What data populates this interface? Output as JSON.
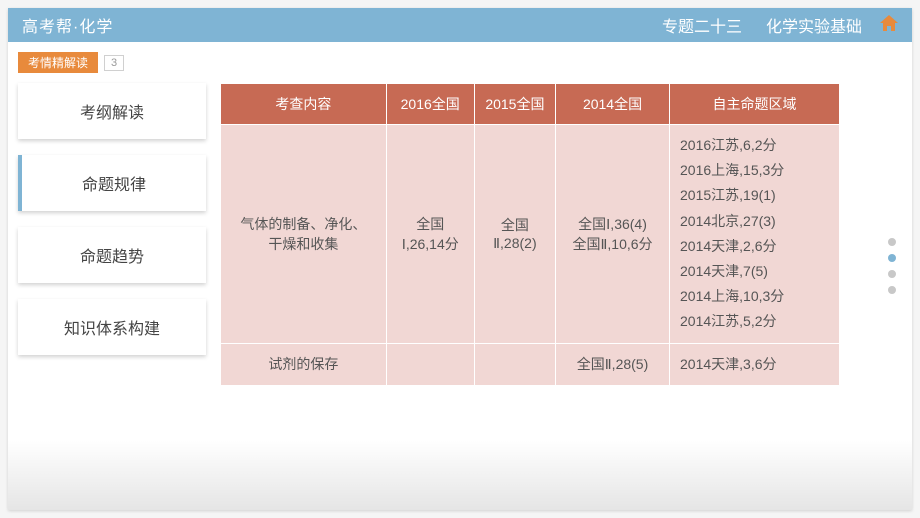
{
  "header": {
    "brand": "高考帮·化学",
    "topic_label": "专题二十三",
    "topic_title": "化学实验基础"
  },
  "subbar": {
    "tag": "考情精解读",
    "num": "3"
  },
  "sidebar": {
    "items": [
      {
        "label": "考纲解读",
        "active": false
      },
      {
        "label": "命题规律",
        "active": true
      },
      {
        "label": "命题趋势",
        "active": false
      },
      {
        "label": "知识体系构建",
        "active": false
      }
    ]
  },
  "table": {
    "columns": [
      "考查内容",
      "2016全国",
      "2015全国",
      "2014全国",
      "自主命题区域"
    ],
    "rows": [
      {
        "topic": "气体的制备、净化、\n干燥和收集",
        "c2016": "全国\nⅠ,26,14分",
        "c2015": "全国\nⅡ,28(2)",
        "c2014": "全国Ⅰ,36(4)\n全国Ⅱ,10,6分",
        "region": "2016江苏,6,2分\n2016上海,15,3分\n2015江苏,19(1)\n2014北京,27(3)\n2014天津,2,6分\n2014天津,7(5)\n2014上海,10,3分\n2014江苏,5,2分"
      },
      {
        "topic": "试剂的保存",
        "c2016": "",
        "c2015": "",
        "c2014": "全国Ⅱ,28(5)",
        "region": "2014天津,3,6分"
      }
    ]
  },
  "dots": {
    "count": 4,
    "active_index": 1
  },
  "colors": {
    "header_bg": "#7fb4d4",
    "accent": "#e88a3c",
    "table_header_bg": "#c76a54",
    "table_cell_bg": "#f1d7d4"
  }
}
